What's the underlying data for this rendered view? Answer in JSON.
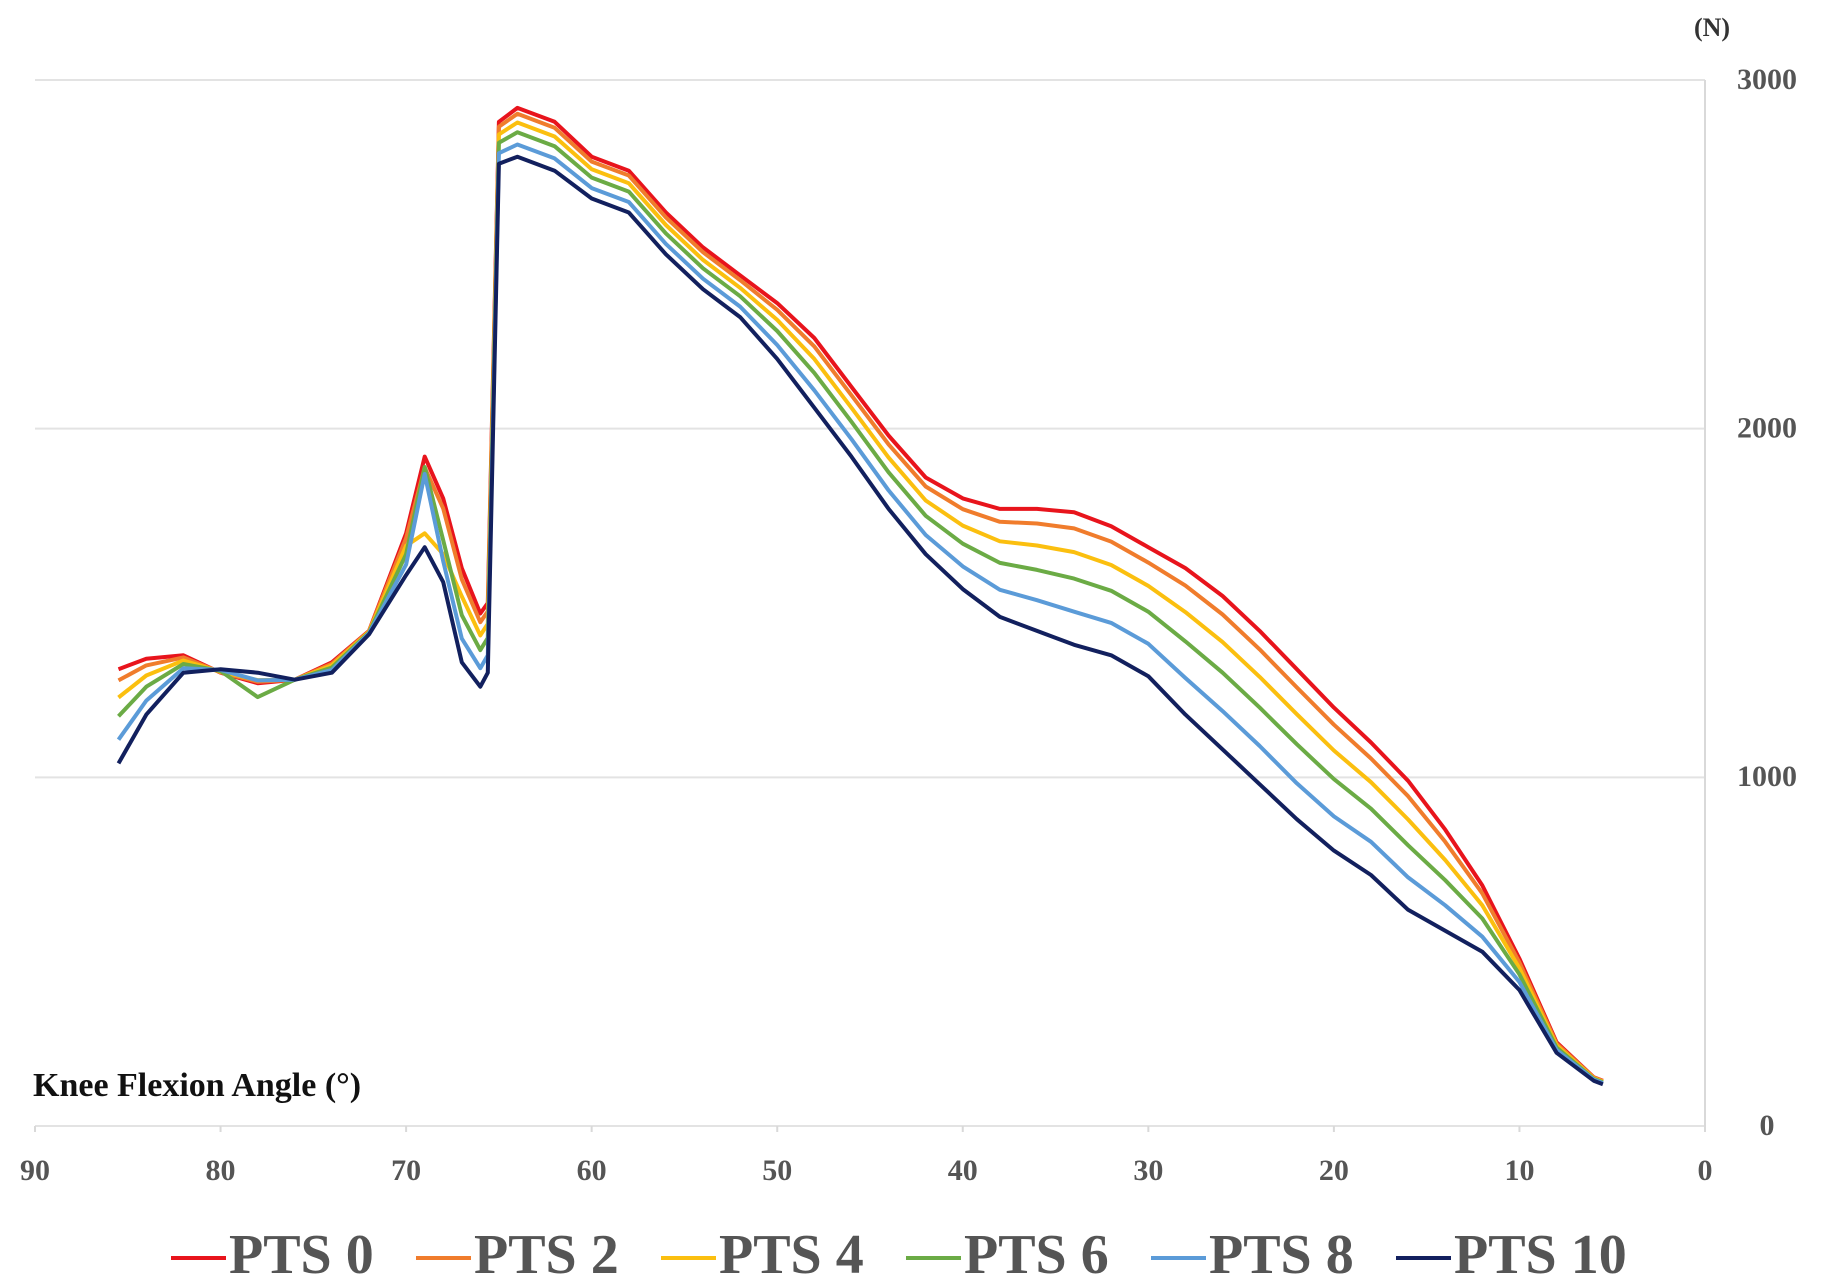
{
  "chart_data": {
    "type": "line",
    "x_label": "Knee Flexion Angle (°)",
    "y_label": "(N)",
    "x": [
      85.5,
      84,
      82,
      80,
      78,
      76,
      74,
      72,
      70,
      69,
      68,
      67,
      66,
      65.6,
      65,
      64,
      62,
      60,
      58,
      56,
      54,
      52,
      50,
      48,
      46,
      44,
      42,
      40,
      38,
      36,
      34,
      32,
      30,
      28,
      26,
      24,
      22,
      20,
      18,
      16,
      14,
      12,
      10,
      8,
      6,
      5.5
    ],
    "series": [
      {
        "name": "PTS 0",
        "color": "#e8141c",
        "values": [
          1310,
          1340,
          1350,
          1300,
          1270,
          1280,
          1330,
          1420,
          1700,
          1920,
          1800,
          1600,
          1470,
          1500,
          2880,
          2920,
          2880,
          2780,
          2740,
          2620,
          2520,
          2440,
          2360,
          2260,
          2120,
          1980,
          1860,
          1800,
          1770,
          1770,
          1760,
          1720,
          1660,
          1600,
          1520,
          1420,
          1310,
          1200,
          1100,
          990,
          850,
          690,
          480,
          240,
          140,
          130
        ]
      },
      {
        "name": "PTS 2",
        "color": "#f07c2c",
        "values": [
          1278,
          1321,
          1344,
          1301,
          1274,
          1280,
          1326,
          1419,
          1686,
          1889,
          1771,
          1568,
          1445,
          1476,
          2866,
          2903,
          2863,
          2766,
          2726,
          2606,
          2506,
          2426,
          2341,
          2236,
          2096,
          1955,
          1834,
          1769,
          1733,
          1728,
          1714,
          1676,
          1616,
          1550,
          1467,
          1367,
          1258,
          1151,
          1054,
          946,
          815,
          667,
          469,
          236,
          139,
          129
        ]
      },
      {
        "name": "PTS 4",
        "color": "#fbbf0f",
        "values": [
          1229,
          1292,
          1335,
          1303,
          1279,
          1280,
          1321,
          1417,
          1664,
          1700,
          1640,
          1519,
          1407,
          1440,
          2844,
          2878,
          2838,
          2744,
          2704,
          2584,
          2484,
          2404,
          2312,
          2200,
          2060,
          1917,
          1794,
          1722,
          1677,
          1665,
          1646,
          1609,
          1549,
          1474,
          1388,
          1288,
          1181,
          1077,
          986,
          879,
          763,
          633,
          453,
          231,
          137,
          127
        ]
      },
      {
        "name": "PTS 6",
        "color": "#6bab45",
        "values": [
          1175,
          1260,
          1325,
          1305,
          1230,
          1280,
          1315,
          1415,
          1640,
          1890,
          1680,
          1465,
          1365,
          1400,
          2820,
          2850,
          2810,
          2720,
          2680,
          2560,
          2460,
          2380,
          2280,
          2160,
          2020,
          1875,
          1750,
          1670,
          1615,
          1595,
          1570,
          1535,
          1475,
          1390,
          1300,
          1200,
          1095,
          995,
          910,
          805,
          705,
          595,
          435,
          225,
          135,
          125
        ]
      },
      {
        "name": "PTS 8",
        "color": "#5b9bd8",
        "values": [
          1108,
          1220,
          1313,
          1308,
          1278,
          1280,
          1308,
          1413,
          1610,
          1870,
          1620,
          1398,
          1313,
          1350,
          2790,
          2815,
          2775,
          2690,
          2650,
          2530,
          2430,
          2350,
          2240,
          2110,
          1970,
          1823,
          1695,
          1605,
          1538,
          1508,
          1475,
          1443,
          1383,
          1285,
          1190,
          1090,
          983,
          888,
          815,
          713,
          633,
          543,
          413,
          218,
          133,
          123
        ]
      },
      {
        "name": "PTS 10",
        "color": "#12205e",
        "values": [
          1040,
          1180,
          1300,
          1310,
          1300,
          1280,
          1300,
          1410,
          1580,
          1660,
          1560,
          1330,
          1260,
          1300,
          2760,
          2780,
          2740,
          2660,
          2620,
          2500,
          2400,
          2320,
          2200,
          2060,
          1920,
          1770,
          1640,
          1540,
          1460,
          1420,
          1380,
          1350,
          1290,
          1180,
          1080,
          980,
          880,
          790,
          720,
          620,
          560,
          500,
          390,
          210,
          130,
          120
        ]
      }
    ],
    "xlim": [
      90,
      0
    ],
    "xticks": [
      90,
      80,
      70,
      60,
      50,
      40,
      30,
      20,
      10,
      0
    ],
    "ylim": [
      0,
      3000
    ],
    "yticks": [
      0,
      1000,
      2000,
      3000
    ],
    "grid": true,
    "legend": "bottom"
  }
}
